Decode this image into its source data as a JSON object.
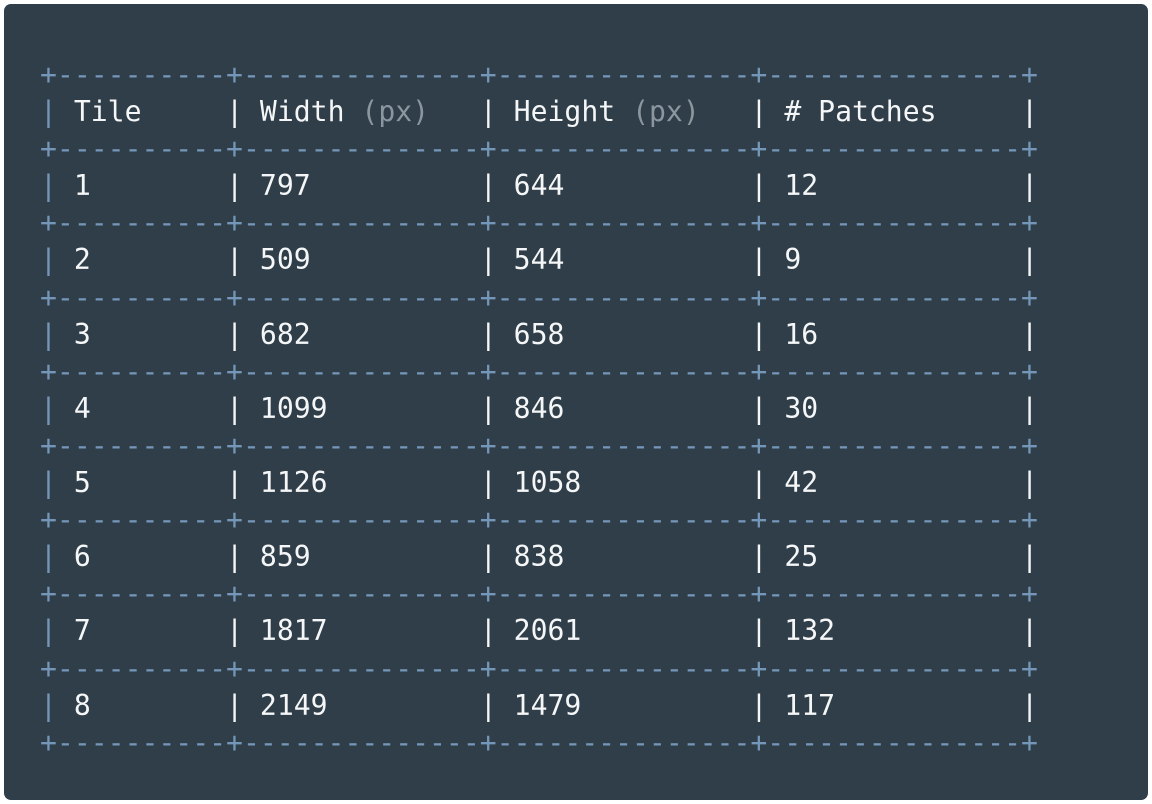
{
  "table": {
    "columns": [
      {
        "label": "Tile",
        "unit": "",
        "width": 10
      },
      {
        "label": "Width",
        "unit": "(px)",
        "width": 14
      },
      {
        "label": "Height",
        "unit": "(px)",
        "width": 15
      },
      {
        "label": "# Patches",
        "unit": "",
        "width": 15
      }
    ],
    "rows": [
      [
        "1",
        "797",
        "644",
        "12"
      ],
      [
        "2",
        "509",
        "544",
        "9"
      ],
      [
        "3",
        "682",
        "658",
        "16"
      ],
      [
        "4",
        "1099",
        "846",
        "30"
      ],
      [
        "5",
        "1126",
        "1058",
        "42"
      ],
      [
        "6",
        "859",
        "838",
        "25"
      ],
      [
        "7",
        "1817",
        "2061",
        "132"
      ],
      [
        "8",
        "2149",
        "1479",
        "117"
      ]
    ]
  },
  "colors": {
    "background": "#2f3e48",
    "text": "#f4f6f7",
    "border": "#7496b8",
    "unit": "#8c969e"
  }
}
